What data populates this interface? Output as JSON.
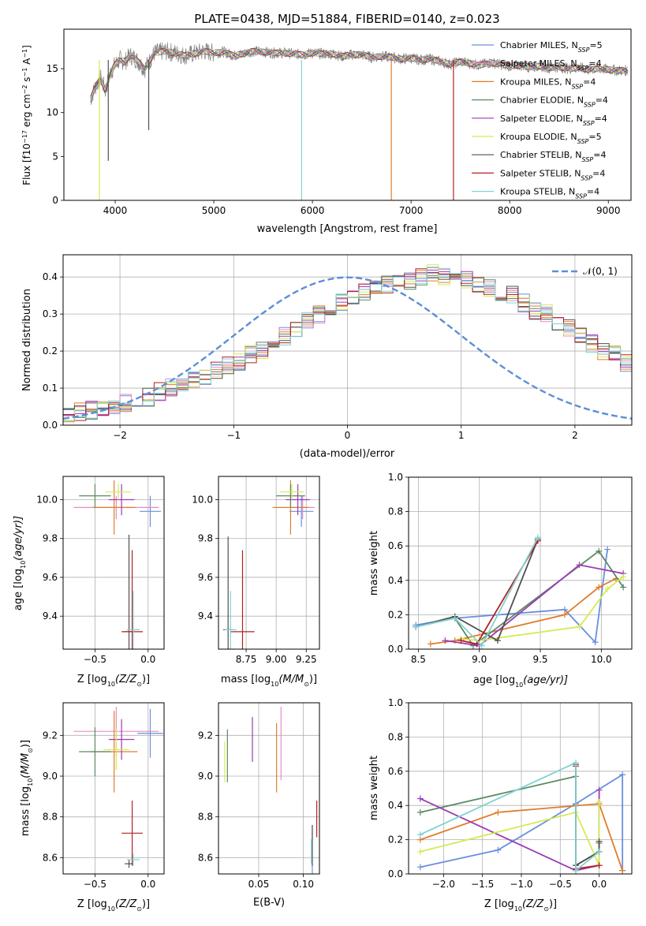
{
  "colors": {
    "chabrier_miles": "#6a8fde",
    "salpeter_miles": "#e68bc6",
    "kroupa_miles": "#e07d2c",
    "chabrier_elodie": "#5b8a60",
    "salpeter_elodie": "#9b3bb5",
    "kroupa_elodie": "#d6ea55",
    "chabrier_stelib": "#505050",
    "salpeter_stelib": "#b22222",
    "kroupa_stelib": "#7fd3d3",
    "normal": "#5b8fd6"
  },
  "chart_data": [
    {
      "id": "spectrum",
      "type": "line",
      "title": "PLATE=0438, MJD=51884, FIBERID=0140, z=0.023",
      "xlabel": "wavelength [Angstrom, rest frame]",
      "ylabel": "Flux [f",
      "ylabel_rest": "10",
      "ylabel_exp": "−17",
      "ylabel_unit1": " erg cm",
      "ylabel_exp2": "−2",
      "ylabel_unit2": " s",
      "ylabel_exp3": "−1",
      "ylabel_unit3": " A",
      "ylabel_exp4": "−1",
      "ylabel_end": "]",
      "xlim": [
        3480,
        9230
      ],
      "ylim": [
        0,
        19.5
      ],
      "xticks": [
        "4000",
        "5000",
        "6000",
        "7000",
        "8000",
        "9000"
      ],
      "xtick_values": [
        4000,
        5000,
        6000,
        7000,
        8000,
        9000
      ],
      "yticks": [
        "0",
        "5",
        "10",
        "15"
      ],
      "ytick_values": [
        0,
        5,
        10,
        15
      ],
      "legend": [
        {
          "label": "Chabrier MILES, N",
          "sub": "SSP",
          "tail": "=5",
          "color": "#6a8fde"
        },
        {
          "label": "Salpeter MILES, N",
          "sub": "SSP",
          "tail": "=4",
          "color": "#e68bc6"
        },
        {
          "label": "Kroupa MILES, N",
          "sub": "SSP",
          "tail": "=4",
          "color": "#e07d2c"
        },
        {
          "label": "Chabrier ELODIE, N",
          "sub": "SSP",
          "tail": "=4",
          "color": "#5b8a60"
        },
        {
          "label": "Salpeter ELODIE, N",
          "sub": "SSP",
          "tail": "=4",
          "color": "#9b3bb5"
        },
        {
          "label": "Kroupa ELODIE, N",
          "sub": "SSP",
          "tail": "=5",
          "color": "#d6ea55"
        },
        {
          "label": "Chabrier STELIB, N",
          "sub": "SSP",
          "tail": "=4",
          "color": "#505050"
        },
        {
          "label": "Salpeter STELIB, N",
          "sub": "SSP",
          "tail": "=4",
          "color": "#b22222"
        },
        {
          "label": "Kroupa STELIB, N",
          "sub": "SSP",
          "tail": "=4",
          "color": "#7fd3d3"
        }
      ],
      "legend_position": "upper right",
      "spectrum_x": [
        3750,
        3800,
        3850,
        3900,
        3950,
        4000,
        4050,
        4100,
        4150,
        4200,
        4300,
        4400,
        4500,
        4600,
        4700,
        4800,
        4900,
        5000,
        5100,
        5200,
        5300,
        5400,
        5500,
        5600,
        5700,
        5800,
        5900,
        6000,
        6100,
        6200,
        6300,
        6400,
        6500,
        6600,
        6700,
        6800,
        6900,
        7000,
        7100,
        7200,
        7300,
        7400,
        7500,
        7600,
        7700,
        7800,
        7900,
        8000,
        8100,
        8200,
        8300,
        8400,
        8500,
        8600,
        8700,
        8800,
        8900,
        9000,
        9100,
        9200
      ],
      "spectrum_y": [
        11.5,
        13.0,
        14.0,
        12.5,
        14.5,
        15.5,
        16.0,
        15.8,
        16.5,
        16.2,
        15.0,
        16.8,
        17.0,
        16.8,
        16.5,
        16.7,
        17.0,
        16.8,
        16.9,
        16.5,
        16.7,
        17.0,
        16.9,
        16.8,
        16.8,
        16.7,
        16.6,
        16.8,
        16.7,
        16.7,
        16.4,
        16.6,
        16.6,
        16.3,
        16.4,
        16.3,
        16.1,
        16.2,
        16.0,
        16.1,
        15.8,
        15.5,
        15.8,
        15.6,
        15.4,
        15.7,
        15.5,
        15.3,
        15.4,
        15.2,
        15.3,
        15.1,
        15.2,
        15.0,
        15.1,
        14.9,
        15.0,
        14.9,
        14.8,
        14.8
      ],
      "dips": [
        {
          "x": 3840,
          "y": 0,
          "color": "#d6ea55"
        },
        {
          "x": 3930,
          "y": 4.5,
          "color": "#505050"
        },
        {
          "x": 4340,
          "y": 8.0,
          "color": "#505050"
        },
        {
          "x": 5890,
          "y": 0,
          "color": "#7fd3d3"
        },
        {
          "x": 6800,
          "y": 0,
          "color": "#e07d2c"
        },
        {
          "x": 7430,
          "y": 0,
          "color": "#b22222"
        }
      ]
    },
    {
      "id": "residuals",
      "type": "histogram",
      "xlabel": "(data-model)/error",
      "ylabel": "Normed distribution",
      "xlim": [
        -2.5,
        2.5
      ],
      "ylim": [
        0,
        0.46
      ],
      "xticks": [
        "−2",
        "−1",
        "0",
        "1",
        "2"
      ],
      "xtick_values": [
        -2,
        -1,
        0,
        1,
        2
      ],
      "yticks": [
        "0.0",
        "0.1",
        "0.2",
        "0.3",
        "0.4"
      ],
      "ytick_values": [
        0,
        0.1,
        0.2,
        0.3,
        0.4
      ],
      "legend": [
        {
          "label": "𝒩(0, 1)",
          "color": "#5b8fd6"
        }
      ],
      "legend_position": "upper right",
      "bin_width": 0.1,
      "bin_start": -2.5,
      "mean_profile": [
        0.03,
        0.035,
        0.04,
        0.045,
        0.05,
        0.06,
        0.065,
        0.075,
        0.09,
        0.1,
        0.11,
        0.12,
        0.13,
        0.15,
        0.16,
        0.17,
        0.19,
        0.2,
        0.22,
        0.24,
        0.26,
        0.28,
        0.3,
        0.31,
        0.33,
        0.35,
        0.36,
        0.37,
        0.38,
        0.39,
        0.39,
        0.4,
        0.41,
        0.4,
        0.39,
        0.39,
        0.38,
        0.37,
        0.36,
        0.35,
        0.33,
        0.31,
        0.3,
        0.28,
        0.26,
        0.24,
        0.22,
        0.2,
        0.19,
        0.17
      ]
    },
    {
      "id": "age_vs_Z",
      "type": "errorbar",
      "xlabel": "Z [log",
      "xlabel_sub": "10",
      "xlabel_rest": "(Z/Z",
      "xlabel_sun_sub": "⊙",
      "xlabel_end": ")]",
      "ylabel": "age  [log",
      "ylabel_sub": "10",
      "ylabel_rest": "(age/yr)]",
      "xlim": [
        -0.8,
        0.15
      ],
      "ylim": [
        9.23,
        10.12
      ],
      "xticks": [
        "−0.5",
        "0.0"
      ],
      "xtick_values": [
        -0.5,
        0.0
      ],
      "yticks": [
        "9.4",
        "9.6",
        "9.8",
        "10.0"
      ],
      "ytick_values": [
        9.4,
        9.6,
        9.8,
        10.0
      ],
      "points": [
        {
          "x": 0.02,
          "y": 9.94,
          "xerr": 0.1,
          "yerr": 0.08,
          "color": "#6a8fde"
        },
        {
          "x": -0.3,
          "y": 9.96,
          "xerr": 0.4,
          "yerr": 0.06,
          "color": "#e68bc6"
        },
        {
          "x": -0.32,
          "y": 9.96,
          "xerr": 0.2,
          "yerr": 0.14,
          "color": "#e07d2c"
        },
        {
          "x": -0.5,
          "y": 10.02,
          "xerr": 0.15,
          "yerr": 0.06,
          "color": "#5b8a60"
        },
        {
          "x": -0.25,
          "y": 10.0,
          "xerr": 0.12,
          "yerr": 0.08,
          "color": "#9b3bb5"
        },
        {
          "x": -0.28,
          "y": 10.04,
          "xerr": 0.12,
          "yerr": 0.04,
          "color": "#d6ea55"
        },
        {
          "x": -0.18,
          "y": 9.32,
          "xerr": 0.04,
          "yerr": 0.5,
          "color": "#505050"
        },
        {
          "x": -0.15,
          "y": 9.32,
          "xerr": 0.1,
          "yerr": 0.42,
          "color": "#b22222"
        },
        {
          "x": -0.14,
          "y": 9.33,
          "xerr": 0.06,
          "yerr": 0.2,
          "color": "#7fd3d3"
        }
      ]
    },
    {
      "id": "age_vs_mass",
      "type": "errorbar",
      "xlabel": "mass [log",
      "xlabel_sub": "10",
      "xlabel_rest": "(M/M",
      "xlabel_sun_sub": "⊙",
      "xlabel_end": ")]",
      "xlim": [
        8.52,
        9.36
      ],
      "ylim": [
        9.23,
        10.12
      ],
      "xticks": [
        "8.75",
        "9.00",
        "9.25"
      ],
      "xtick_values": [
        8.75,
        9.0,
        9.25
      ],
      "yticks": [
        "9.4",
        "9.6",
        "9.8",
        "10.0"
      ],
      "ytick_values": [
        9.4,
        9.6,
        9.8,
        10.0
      ],
      "points": [
        {
          "x": 9.21,
          "y": 9.94,
          "xerr": 0.1,
          "yerr": 0.08,
          "color": "#6a8fde"
        },
        {
          "x": 9.22,
          "y": 9.96,
          "xerr": 0.1,
          "yerr": 0.06,
          "color": "#e68bc6"
        },
        {
          "x": 9.12,
          "y": 9.96,
          "xerr": 0.15,
          "yerr": 0.14,
          "color": "#e07d2c"
        },
        {
          "x": 9.12,
          "y": 10.02,
          "xerr": 0.12,
          "yerr": 0.06,
          "color": "#5b8a60"
        },
        {
          "x": 9.18,
          "y": 10.0,
          "xerr": 0.1,
          "yerr": 0.08,
          "color": "#9b3bb5"
        },
        {
          "x": 9.13,
          "y": 10.04,
          "xerr": 0.1,
          "yerr": 0.04,
          "color": "#d6ea55"
        },
        {
          "x": 8.6,
          "y": 9.33,
          "xerr": 0.04,
          "yerr": 0.48,
          "color": "#505050"
        },
        {
          "x": 8.72,
          "y": 9.32,
          "xerr": 0.1,
          "yerr": 0.42,
          "color": "#b22222"
        },
        {
          "x": 8.62,
          "y": 9.33,
          "xerr": 0.05,
          "yerr": 0.2,
          "color": "#7fd3d3"
        }
      ]
    },
    {
      "id": "weight_vs_age",
      "type": "line",
      "xlabel": "age  [log",
      "xlabel_sub": "10",
      "xlabel_rest": "(age/yr)]",
      "ylabel": "mass weight",
      "xlim": [
        8.42,
        10.25
      ],
      "ylim": [
        0,
        1.0
      ],
      "xticks": [
        "8.5",
        "9.0",
        "9.5",
        "10.0"
      ],
      "xtick_values": [
        8.5,
        9.0,
        9.5,
        10.0
      ],
      "yticks": [
        "0.0",
        "0.2",
        "0.4",
        "0.6",
        "0.8",
        "1.0"
      ],
      "ytick_values": [
        0,
        0.2,
        0.4,
        0.6,
        0.8,
        1.0
      ],
      "series": [
        {
          "color": "#6a8fde",
          "x": [
            8.48,
            8.8,
            9.7,
            9.95,
            10.05
          ],
          "y": [
            0.14,
            0.18,
            0.23,
            0.04,
            0.58
          ]
        },
        {
          "color": "#e07d2c",
          "x": [
            8.6,
            8.8,
            9.7,
            9.98,
            10.12
          ],
          "y": [
            0.03,
            0.05,
            0.2,
            0.36,
            0.41
          ]
        },
        {
          "color": "#5b8a60",
          "x": [
            8.48,
            8.8,
            8.95,
            9.98,
            10.18
          ],
          "y": [
            0.13,
            0.18,
            0.02,
            0.57,
            0.36
          ]
        },
        {
          "color": "#9b3bb5",
          "x": [
            8.72,
            9.0,
            9.82,
            10.18
          ],
          "y": [
            0.05,
            0.02,
            0.49,
            0.44
          ]
        },
        {
          "color": "#d6ea55",
          "x": [
            8.85,
            9.0,
            9.82,
            10.05,
            10.18
          ],
          "y": [
            0.06,
            0.05,
            0.13,
            0.35,
            0.42
          ]
        },
        {
          "color": "#505050",
          "x": [
            8.48,
            8.8,
            9.15,
            9.48
          ],
          "y": [
            0.13,
            0.19,
            0.05,
            0.64
          ]
        },
        {
          "color": "#b22222",
          "x": [
            8.85,
            8.98,
            9.48
          ],
          "y": [
            0.05,
            0.03,
            0.63
          ]
        },
        {
          "color": "#7fd3d3",
          "x": [
            8.48,
            8.8,
            9.02,
            9.48
          ],
          "y": [
            0.13,
            0.18,
            0.02,
            0.65
          ]
        }
      ]
    },
    {
      "id": "mass_vs_Z",
      "type": "errorbar",
      "xlabel": "Z [log",
      "xlabel_sub": "10",
      "xlabel_rest": "(Z/Z",
      "xlabel_sun_sub": "⊙",
      "xlabel_end": ")]",
      "ylabel": "mass [log",
      "ylabel_sub": "10",
      "ylabel_rest": "(M/M",
      "ylabel_sun_sub": "⊙",
      "ylabel_end": ")]",
      "xlim": [
        -0.8,
        0.15
      ],
      "ylim": [
        8.52,
        9.36
      ],
      "xticks": [
        "−0.5",
        "0.0"
      ],
      "xtick_values": [
        -0.5,
        0.0
      ],
      "yticks": [
        "8.6",
        "8.8",
        "9.0",
        "9.2"
      ],
      "ytick_values": [
        8.6,
        8.8,
        9.0,
        9.2
      ],
      "points": [
        {
          "x": 0.02,
          "y": 9.21,
          "xerr": 0.12,
          "yerr": 0.12,
          "color": "#6a8fde"
        },
        {
          "x": -0.3,
          "y": 9.22,
          "xerr": 0.4,
          "yerr": 0.12,
          "color": "#e68bc6"
        },
        {
          "x": -0.32,
          "y": 9.12,
          "xerr": 0.22,
          "yerr": 0.2,
          "color": "#e07d2c"
        },
        {
          "x": -0.5,
          "y": 9.12,
          "xerr": 0.15,
          "yerr": 0.12,
          "color": "#5b8a60"
        },
        {
          "x": -0.25,
          "y": 9.18,
          "xerr": 0.12,
          "yerr": 0.1,
          "color": "#9b3bb5"
        },
        {
          "x": -0.3,
          "y": 9.13,
          "xerr": 0.12,
          "yerr": 0.1,
          "color": "#d6ea55"
        },
        {
          "x": -0.18,
          "y": 8.57,
          "xerr": 0.04,
          "yerr": 0.02,
          "color": "#505050"
        },
        {
          "x": -0.15,
          "y": 8.72,
          "xerr": 0.1,
          "yerr": 0.16,
          "color": "#b22222"
        },
        {
          "x": -0.14,
          "y": 8.59,
          "xerr": 0.06,
          "yerr": 0.03,
          "color": "#7fd3d3"
        }
      ]
    },
    {
      "id": "mass_vs_ebv",
      "type": "errorbar",
      "xlabel": "E(B-V)",
      "xlim": [
        0.005,
        0.118
      ],
      "ylim": [
        8.52,
        9.36
      ],
      "xticks": [
        "0.05",
        "0.10"
      ],
      "xtick_values": [
        0.05,
        0.1
      ],
      "yticks": [
        "8.6",
        "8.8",
        "9.0",
        "9.2"
      ],
      "ytick_values": [
        8.6,
        8.8,
        9.0,
        9.2
      ],
      "points": [
        {
          "x": 0.11,
          "y": 8.64,
          "xerr": 0,
          "yerr": 0.12,
          "color": "#6a8fde"
        },
        {
          "x": 0.075,
          "y": 9.16,
          "xerr": 0,
          "yerr": 0.18,
          "color": "#e68bc6"
        },
        {
          "x": 0.07,
          "y": 9.09,
          "xerr": 0,
          "yerr": 0.17,
          "color": "#e07d2c"
        },
        {
          "x": 0.015,
          "y": 9.1,
          "xerr": 0,
          "yerr": 0.13,
          "color": "#5b8a60"
        },
        {
          "x": 0.043,
          "y": 9.18,
          "xerr": 0,
          "yerr": 0.11,
          "color": "#9b3bb5"
        },
        {
          "x": 0.012,
          "y": 9.07,
          "xerr": 0,
          "yerr": 0.1,
          "color": "#d6ea55"
        },
        {
          "x": 0.11,
          "y": 8.66,
          "xerr": 0,
          "yerr": 0.1,
          "color": "#505050"
        },
        {
          "x": 0.115,
          "y": 8.79,
          "xerr": 0,
          "yerr": 0.09,
          "color": "#b22222"
        },
        {
          "x": 0.109,
          "y": 8.63,
          "xerr": 0,
          "yerr": 0.06,
          "color": "#7fd3d3"
        }
      ]
    },
    {
      "id": "weight_vs_Z",
      "type": "line",
      "xlabel": "Z [log",
      "xlabel_sub": "10",
      "xlabel_rest": "(Z/Z",
      "xlabel_sun_sub": "⊙",
      "xlabel_end": ")]",
      "ylabel": "mass weight",
      "xlim": [
        -2.45,
        0.42
      ],
      "ylim": [
        0,
        1.0
      ],
      "xticks": [
        "−2.0",
        "−1.5",
        "−1.0",
        "−0.5",
        "0.0"
      ],
      "xtick_values": [
        -2.0,
        -1.5,
        -1.0,
        -0.5,
        0.0
      ],
      "yticks": [
        "0.0",
        "0.2",
        "0.4",
        "0.6",
        "0.8",
        "1.0"
      ],
      "ytick_values": [
        0,
        0.2,
        0.4,
        0.6,
        0.8,
        1.0
      ],
      "series": [
        {
          "color": "#6a8fde",
          "x": [
            -2.3,
            -1.3,
            -0.3,
            0.3,
            0.3
          ],
          "y": [
            0.04,
            0.14,
            0.41,
            0.58,
            0.02
          ]
        },
        {
          "color": "#e07d2c",
          "x": [
            -2.3,
            -1.3,
            0.0,
            0.3
          ],
          "y": [
            0.2,
            0.36,
            0.41,
            0.02
          ]
        },
        {
          "color": "#5b8a60",
          "x": [
            -2.3,
            -0.3,
            -0.3,
            0.0,
            0.0
          ],
          "y": [
            0.36,
            0.57,
            0.05,
            0.13,
            0.18
          ]
        },
        {
          "color": "#9b3bb5",
          "x": [
            -2.3,
            -0.3,
            0.0,
            0.0
          ],
          "y": [
            0.44,
            0.02,
            0.05,
            0.49
          ]
        },
        {
          "color": "#d6ea55",
          "x": [
            -2.3,
            -0.3,
            0.0,
            0.0
          ],
          "y": [
            0.13,
            0.36,
            0.05,
            0.42
          ]
        },
        {
          "color": "#505050",
          "x": [
            -0.3,
            -0.3,
            0.0,
            0.0
          ],
          "y": [
            0.64,
            0.05,
            0.13,
            0.19
          ]
        },
        {
          "color": "#b22222",
          "x": [
            -0.3,
            -0.3,
            0.0
          ],
          "y": [
            0.63,
            0.03,
            0.05
          ]
        },
        {
          "color": "#7fd3d3",
          "x": [
            -2.3,
            -0.3,
            -0.3,
            0.0
          ],
          "y": [
            0.23,
            0.65,
            0.02,
            0.13
          ]
        }
      ]
    }
  ]
}
